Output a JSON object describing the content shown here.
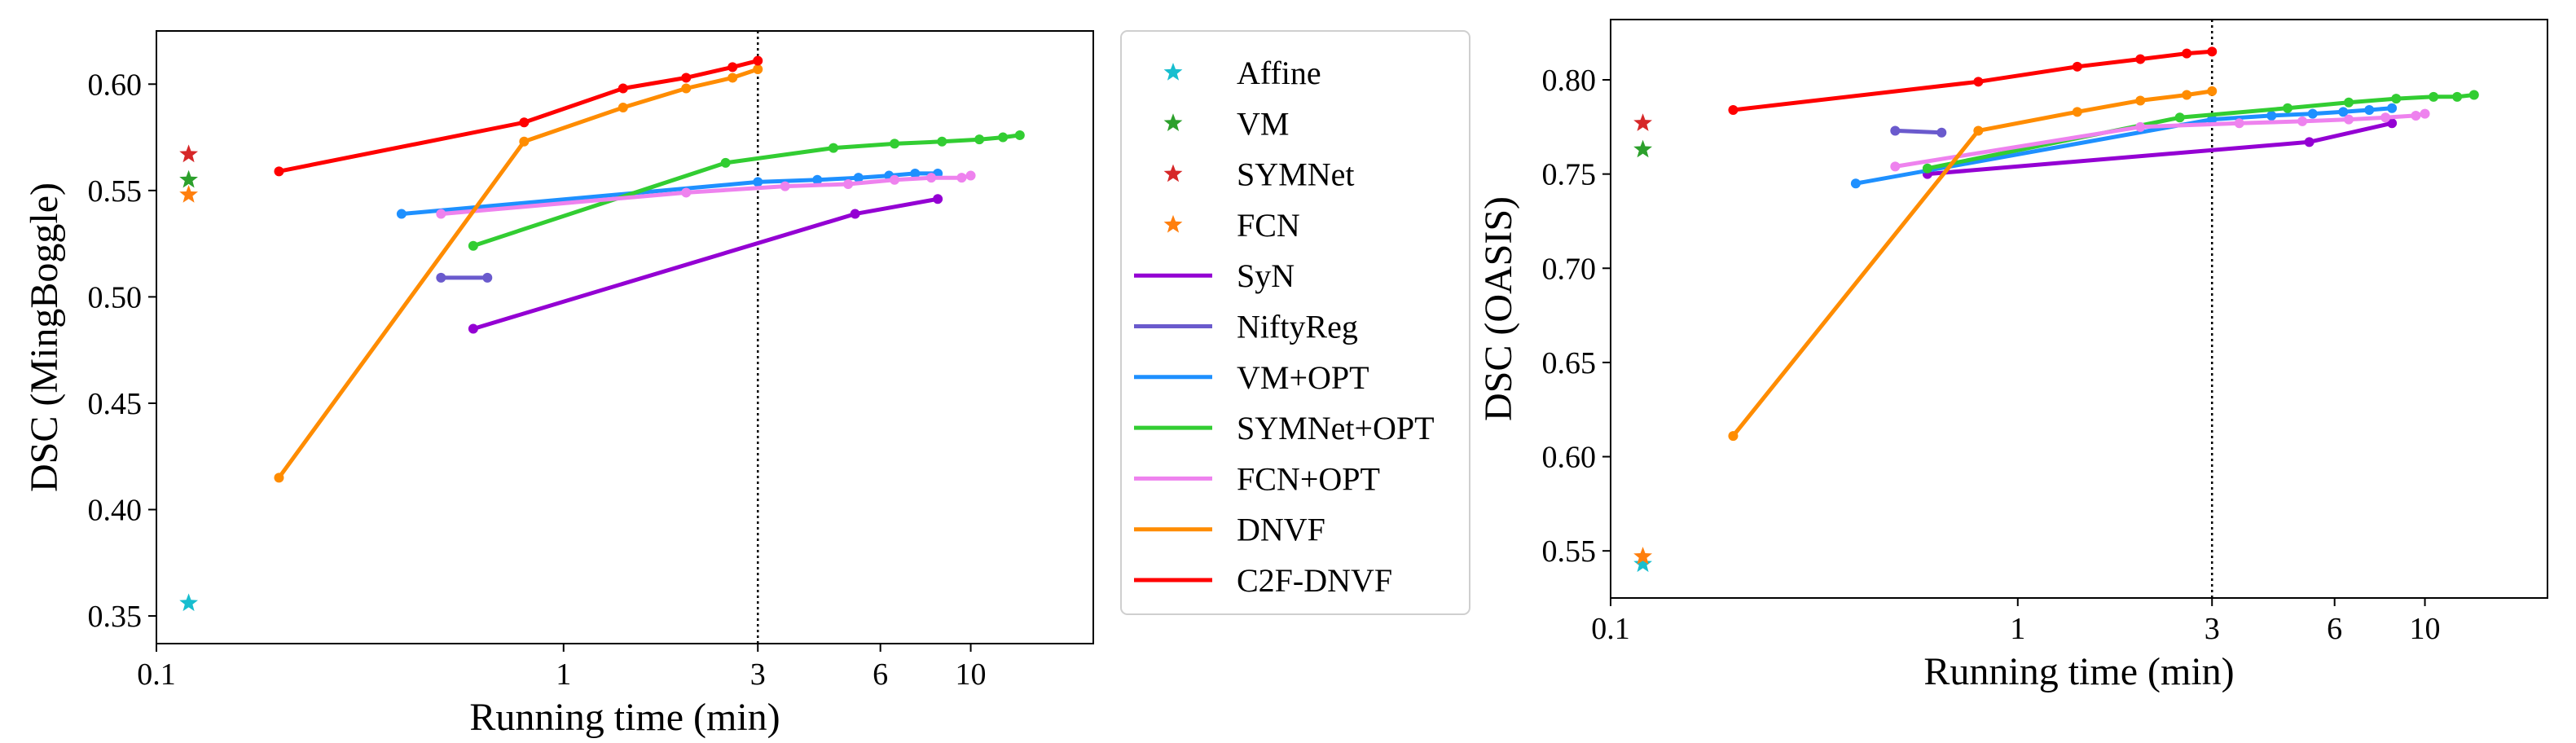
{
  "chart_data": [
    {
      "type": "line",
      "xlabel": "Running time (min)",
      "ylabel": "DSC (MingBoggle)",
      "xscale": "log",
      "xlim": [
        0.1,
        20
      ],
      "ylim": [
        0.337,
        0.625
      ],
      "xticks": [
        0.1,
        1,
        3,
        6,
        10
      ],
      "xtick_labels": [
        "0.1",
        "1",
        "3",
        "6",
        "10"
      ],
      "yticks": [
        0.35,
        0.4,
        0.45,
        0.5,
        0.55,
        0.6
      ],
      "ytick_labels": [
        "0.35",
        "0.40",
        "0.45",
        "0.50",
        "0.55",
        "0.60"
      ],
      "vline_x": 3,
      "points": [
        {
          "name": "Affine",
          "x": 0.12,
          "y": 0.356
        },
        {
          "name": "VM",
          "x": 0.12,
          "y": 0.555
        },
        {
          "name": "SYMNet",
          "x": 0.12,
          "y": 0.567
        },
        {
          "name": "FCN",
          "x": 0.12,
          "y": 0.548
        }
      ],
      "series": [
        {
          "name": "SyN",
          "x": [
            0.6,
            5.2,
            8.3
          ],
          "y": [
            0.485,
            0.539,
            0.546
          ]
        },
        {
          "name": "NiftyReg",
          "x": [
            0.5,
            0.65
          ],
          "y": [
            0.509,
            0.509
          ]
        },
        {
          "name": "VM+OPT",
          "x": [
            0.4,
            3.0,
            4.2,
            5.3,
            6.3,
            7.3,
            8.3
          ],
          "y": [
            0.539,
            0.554,
            0.555,
            0.556,
            0.557,
            0.558,
            0.558
          ]
        },
        {
          "name": "SYMNet+OPT",
          "x": [
            0.6,
            2.5,
            4.6,
            6.5,
            8.5,
            10.5,
            12.0,
            13.2
          ],
          "y": [
            0.524,
            0.563,
            0.57,
            0.572,
            0.573,
            0.574,
            0.575,
            0.576
          ]
        },
        {
          "name": "FCN+OPT",
          "x": [
            0.5,
            2.0,
            3.5,
            5.0,
            6.5,
            8.0,
            9.5,
            10.0
          ],
          "y": [
            0.539,
            0.549,
            0.552,
            0.553,
            0.555,
            0.556,
            0.556,
            0.557
          ]
        },
        {
          "name": "DNVF",
          "x": [
            0.2,
            0.8,
            1.4,
            2.0,
            2.6,
            3.0
          ],
          "y": [
            0.415,
            0.573,
            0.589,
            0.598,
            0.603,
            0.607
          ]
        },
        {
          "name": "C2F-DNVF",
          "x": [
            0.2,
            0.8,
            1.4,
            2.0,
            2.6,
            3.0
          ],
          "y": [
            0.559,
            0.582,
            0.598,
            0.603,
            0.608,
            0.611
          ]
        }
      ]
    },
    {
      "type": "line",
      "xlabel": "Running time (min)",
      "ylabel": "DSC (OASIS)",
      "xscale": "log",
      "xlim": [
        0.1,
        20
      ],
      "ylim": [
        0.525,
        0.832
      ],
      "xticks": [
        0.1,
        1,
        3,
        6,
        10
      ],
      "xtick_labels": [
        "0.1",
        "1",
        "3",
        "6",
        "10"
      ],
      "yticks": [
        0.55,
        0.6,
        0.65,
        0.7,
        0.75,
        0.8
      ],
      "ytick_labels": [
        "0.55",
        "0.60",
        "0.65",
        "0.70",
        "0.75",
        "0.80"
      ],
      "vline_x": 3,
      "points": [
        {
          "name": "Affine",
          "x": 0.12,
          "y": 0.543
        },
        {
          "name": "VM",
          "x": 0.12,
          "y": 0.763
        },
        {
          "name": "SYMNet",
          "x": 0.12,
          "y": 0.777
        },
        {
          "name": "FCN",
          "x": 0.12,
          "y": 0.547
        }
      ],
      "series": [
        {
          "name": "SyN",
          "x": [
            0.6,
            5.2,
            8.3
          ],
          "y": [
            0.75,
            0.767,
            0.777
          ]
        },
        {
          "name": "NiftyReg",
          "x": [
            0.5,
            0.65
          ],
          "y": [
            0.773,
            0.772
          ]
        },
        {
          "name": "VM+OPT",
          "x": [
            0.4,
            3.0,
            4.2,
            5.3,
            6.3,
            7.3,
            8.3
          ],
          "y": [
            0.745,
            0.779,
            0.781,
            0.782,
            0.783,
            0.784,
            0.785
          ]
        },
        {
          "name": "SYMNet+OPT",
          "x": [
            0.6,
            2.5,
            4.6,
            6.5,
            8.5,
            10.5,
            12.0,
            13.2
          ],
          "y": [
            0.753,
            0.78,
            0.785,
            0.788,
            0.79,
            0.791,
            0.791,
            0.792
          ]
        },
        {
          "name": "FCN+OPT",
          "x": [
            0.5,
            2.0,
            3.5,
            5.0,
            6.5,
            8.0,
            9.5,
            10.0
          ],
          "y": [
            0.754,
            0.775,
            0.777,
            0.778,
            0.779,
            0.78,
            0.781,
            0.782
          ]
        },
        {
          "name": "DNVF",
          "x": [
            0.2,
            0.8,
            1.4,
            2.0,
            2.6,
            3.0
          ],
          "y": [
            0.611,
            0.773,
            0.783,
            0.789,
            0.792,
            0.794
          ]
        },
        {
          "name": "C2F-DNVF",
          "x": [
            0.2,
            0.8,
            1.4,
            2.0,
            2.6,
            3.0
          ],
          "y": [
            0.784,
            0.799,
            0.807,
            0.811,
            0.814,
            0.815
          ]
        }
      ]
    }
  ],
  "legend": {
    "items": [
      {
        "label": "Affine",
        "marker": "star",
        "color": "#17becf"
      },
      {
        "label": "VM",
        "marker": "star",
        "color": "#2ca02c"
      },
      {
        "label": "SYMNet",
        "marker": "star",
        "color": "#d62728"
      },
      {
        "label": "FCN",
        "marker": "star",
        "color": "#ff7f0e"
      },
      {
        "label": "SyN",
        "marker": "line",
        "color": "#9400d3"
      },
      {
        "label": "NiftyReg",
        "marker": "line",
        "color": "#6a5acd"
      },
      {
        "label": "VM+OPT",
        "marker": "line",
        "color": "#1e90ff"
      },
      {
        "label": "SYMNet+OPT",
        "marker": "line",
        "color": "#32cd32"
      },
      {
        "label": "FCN+OPT",
        "marker": "line",
        "color": "#ee82ee"
      },
      {
        "label": "DNVF",
        "marker": "line",
        "color": "#ff8c00"
      },
      {
        "label": "C2F-DNVF",
        "marker": "line",
        "color": "#ff0000"
      }
    ]
  }
}
